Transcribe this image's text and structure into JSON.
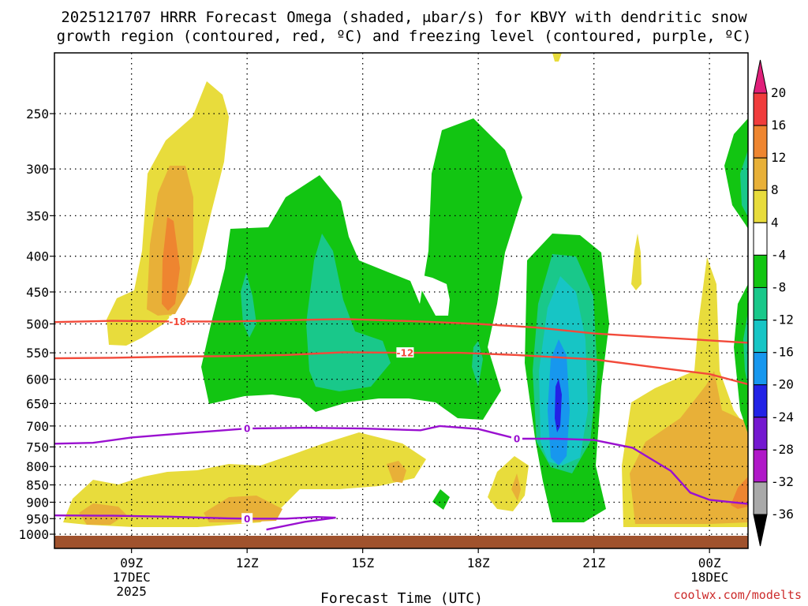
{
  "chart_data": {
    "type": "contour",
    "title_line1": "2025121707 HRRR Forecast Omega (shaded, μbar/s) for KBVY with dendritic snow",
    "title_line2": "growth region (contoured, red, ºC) and freezing level (contoured, purple, ºC)",
    "xlabel": "Forecast Time (UTC)",
    "watermark": "coolwx.com/modelts",
    "x_hours_range": [
      7.0,
      25.0
    ],
    "y_levels": [
      "250",
      "300",
      "350",
      "400",
      "450",
      "500",
      "550",
      "600",
      "650",
      "700",
      "750",
      "800",
      "850",
      "900",
      "950",
      "1000"
    ],
    "y_ylim_hpa": [
      190,
      1020
    ],
    "x_ticks": [
      {
        "hour": 9,
        "label": "09Z",
        "sub1": "17DEC",
        "sub2": "2025"
      },
      {
        "hour": 12,
        "label": "12Z",
        "sub1": "",
        "sub2": ""
      },
      {
        "hour": 15,
        "label": "15Z",
        "sub1": "",
        "sub2": ""
      },
      {
        "hour": 18,
        "label": "18Z",
        "sub1": "",
        "sub2": ""
      },
      {
        "hour": 21,
        "label": "21Z",
        "sub1": "",
        "sub2": ""
      },
      {
        "hour": 24,
        "label": "00Z",
        "sub1": "18DEC",
        "sub2": ""
      }
    ],
    "colorbar": {
      "levels": [
        "20",
        "16",
        "12",
        "8",
        "4",
        "-4",
        "-8",
        "-12",
        "-16",
        "-20",
        "-24",
        "-28",
        "-32",
        "-36"
      ],
      "colors": [
        "#e0207a",
        "#f03c3c",
        "#ee8530",
        "#e8b038",
        "#e8dc3c",
        "#ffffff",
        "#12c512",
        "#19c88a",
        "#17c5c5",
        "#1797ee",
        "#2222e6",
        "#7418d0",
        "#b018c8",
        "#a9a9a9",
        "#000000"
      ]
    },
    "contours_red_dgz": [
      {
        "label": "-18",
        "points": [
          [
            7.0,
            497
          ],
          [
            8.5,
            495
          ],
          [
            10.0,
            496
          ],
          [
            11.5,
            496
          ],
          [
            13.0,
            494
          ],
          [
            14.5,
            492
          ],
          [
            16.5,
            496
          ],
          [
            18.0,
            500
          ],
          [
            19.5,
            506
          ],
          [
            21.0,
            516
          ],
          [
            22.5,
            522
          ],
          [
            24.0,
            528
          ],
          [
            25.0,
            532
          ]
        ]
      },
      {
        "label": "-12",
        "points": [
          [
            7.0,
            560
          ],
          [
            8.5,
            559
          ],
          [
            10.0,
            557
          ],
          [
            11.5,
            556
          ],
          [
            13.0,
            554
          ],
          [
            14.5,
            549
          ],
          [
            16.0,
            550
          ],
          [
            17.5,
            550
          ],
          [
            19.0,
            554
          ],
          [
            21.0,
            562
          ],
          [
            22.5,
            576
          ],
          [
            24.0,
            590
          ],
          [
            25.0,
            610
          ]
        ]
      }
    ],
    "contours_purple_freezing": [
      {
        "label": "0",
        "points": [
          [
            7.0,
            742
          ],
          [
            8.0,
            740
          ],
          [
            9.0,
            727
          ],
          [
            10.5,
            716
          ],
          [
            12.0,
            706
          ],
          [
            13.5,
            704
          ],
          [
            15.0,
            706
          ],
          [
            16.5,
            710
          ],
          [
            17.0,
            700
          ],
          [
            18.0,
            707
          ],
          [
            19.0,
            730
          ],
          [
            20.0,
            730
          ],
          [
            21.0,
            733
          ],
          [
            22.0,
            752
          ],
          [
            23.0,
            812
          ],
          [
            23.5,
            872
          ],
          [
            24.0,
            893
          ],
          [
            25.0,
            905
          ]
        ]
      },
      {
        "label": "0",
        "points": [
          [
            7.0,
            940
          ],
          [
            8.5,
            941
          ],
          [
            10.0,
            944
          ],
          [
            11.5,
            949
          ],
          [
            12.0,
            950
          ],
          [
            13.0,
            950
          ],
          [
            13.8,
            945
          ],
          [
            14.3,
            947
          ],
          [
            13.5,
            960
          ],
          [
            12.5,
            985
          ]
        ]
      }
    ],
    "contours_labels_colors": {
      "dgz": "#f24a3a",
      "freezing": "#9a10d0"
    }
  }
}
